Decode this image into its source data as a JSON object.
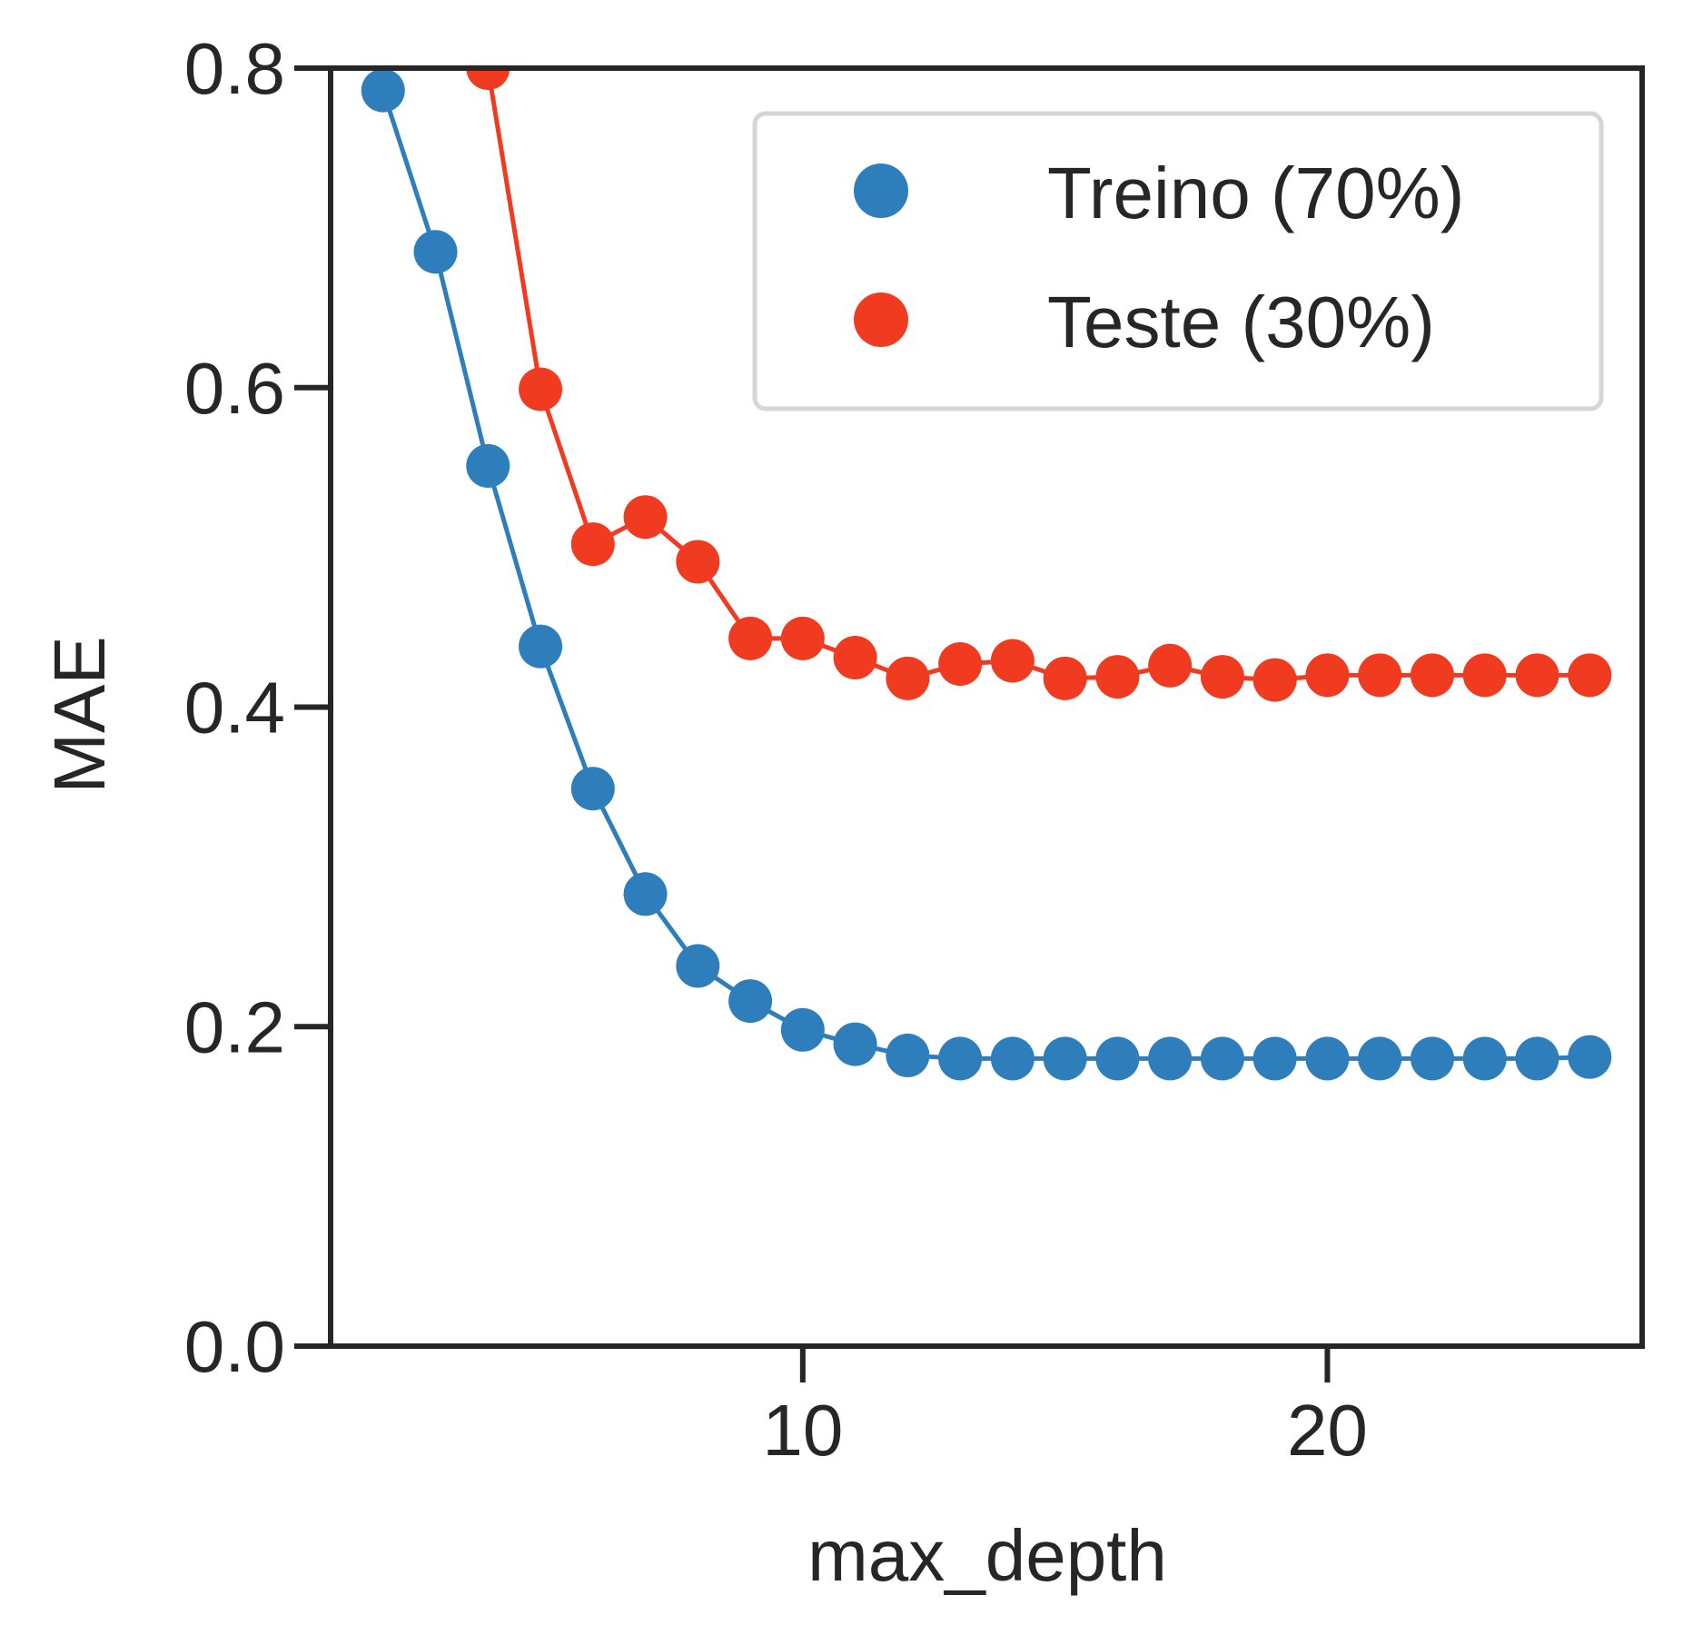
{
  "chart_data": {
    "type": "line",
    "x_label": "max_depth",
    "y_label": "MAE",
    "x": [
      2,
      3,
      4,
      5,
      6,
      7,
      8,
      9,
      10,
      11,
      12,
      13,
      14,
      15,
      16,
      17,
      18,
      19,
      20,
      21,
      22,
      23,
      24,
      25
    ],
    "series": [
      {
        "name": "Treino (70%)",
        "color": "#2e7ebc",
        "values": [
          0.786,
          0.685,
          0.551,
          0.438,
          0.349,
          0.283,
          0.238,
          0.216,
          0.198,
          0.189,
          0.182,
          0.18,
          0.18,
          0.18,
          0.18,
          0.18,
          0.18,
          0.18,
          0.18,
          0.18,
          0.18,
          0.18,
          0.18,
          0.181
        ]
      },
      {
        "name": "Teste (30%)",
        "color": "#f03b20",
        "values": [
          null,
          null,
          0.8,
          0.599,
          0.502,
          0.519,
          0.491,
          0.443,
          0.443,
          0.431,
          0.418,
          0.427,
          0.429,
          0.418,
          0.419,
          0.426,
          0.419,
          0.417,
          0.42,
          0.42,
          0.42,
          0.42,
          0.42,
          0.42
        ]
      }
    ],
    "xlim": [
      1,
      26
    ],
    "ylim": [
      0,
      0.8
    ],
    "xticks": [
      10,
      20
    ],
    "yticks": [
      {
        "value": 0,
        "label": "0.0"
      },
      0.2,
      0.4,
      0.6,
      0.8
    ],
    "legend": "upper right",
    "grid": false
  }
}
